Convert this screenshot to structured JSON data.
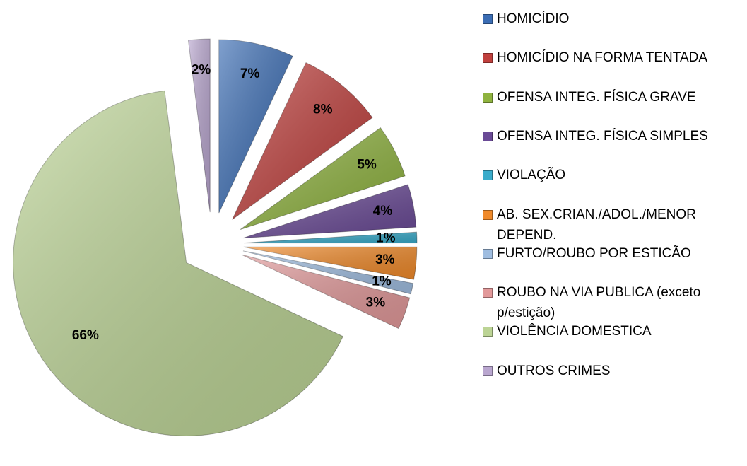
{
  "chart_data": {
    "type": "pie",
    "categories": [
      "HOMICÍDIO",
      "HOMICÍDIO NA FORMA TENTADA",
      "OFENSA INTEG. FÍSICA GRAVE",
      "OFENSA INTEG. FÍSICA SIMPLES",
      "VIOLAÇÃO",
      "AB. SEX.CRIAN./ADOL./MENOR DEPEND.",
      "FURTO/ROUBO POR ESTICÃO",
      "ROUBO NA VIA PUBLICA (exceto p/estição)",
      "VIOLÊNCIA DOMESTICA",
      "OUTROS CRIMES"
    ],
    "values": [
      7,
      8,
      5,
      4,
      1,
      3,
      1,
      3,
      66,
      2
    ],
    "value_labels": [
      "7%",
      "8%",
      "5%",
      "4%",
      "1%",
      "3%",
      "1%",
      "3%",
      "66%",
      "2%"
    ],
    "colors": [
      "#3b6db4",
      "#c0403d",
      "#8fb33f",
      "#6a4a96",
      "#3aaccb",
      "#f08a2a",
      "#9fbde0",
      "#e2999a",
      "#bcd495",
      "#b9a6cf"
    ],
    "legend": "right"
  }
}
